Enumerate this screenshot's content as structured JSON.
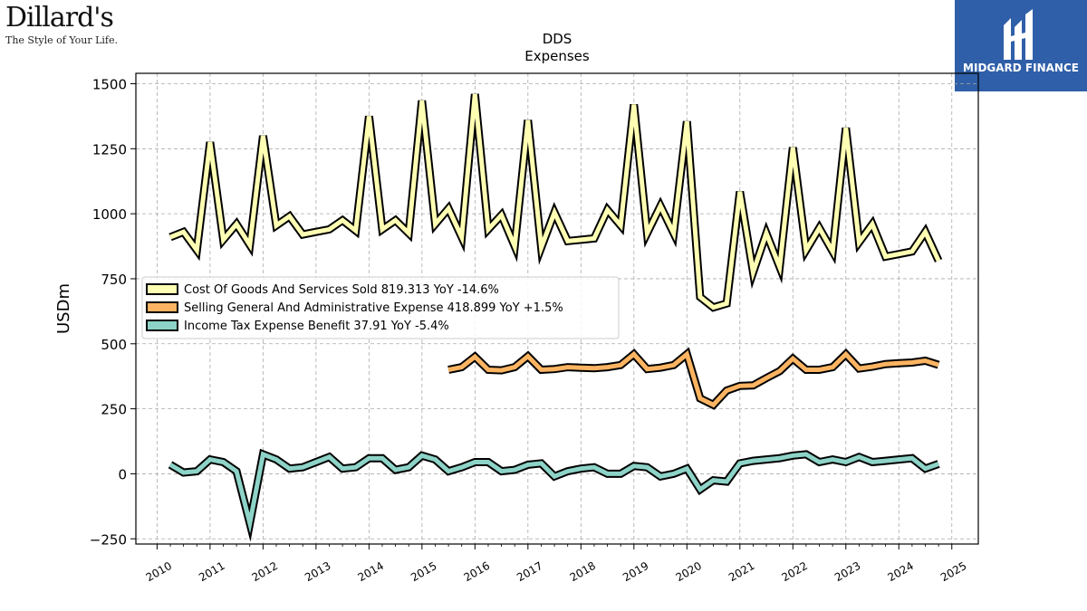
{
  "branding": {
    "left_logo_name": "Dillard's",
    "left_logo_tagline": "The Style of Your Life.",
    "right_logo_name": "MIDGARD FINANCE"
  },
  "colors": {
    "cogs": "#ffffb3",
    "sga": "#fdb462",
    "tax": "#8dd3c7",
    "outline": "#000000",
    "grid": "#aaaaaa",
    "brand_blue": "#2f5fa8"
  },
  "chart_data": {
    "type": "line",
    "title": "DDS",
    "subtitle": "Expenses",
    "ylabel": "USDm",
    "xlabel": "",
    "ylim": [
      -270,
      1540
    ],
    "xlim": [
      2009.6,
      2025.5
    ],
    "yticks": [
      -250,
      0,
      250,
      500,
      750,
      1000,
      1250,
      1500
    ],
    "ytick_labels": [
      "−250",
      "0",
      "250",
      "500",
      "750",
      "1000",
      "1250",
      "1500"
    ],
    "xticks": [
      2010,
      2011,
      2012,
      2013,
      2014,
      2015,
      2016,
      2017,
      2018,
      2019,
      2020,
      2021,
      2022,
      2023,
      2024,
      2025
    ],
    "xtick_labels": [
      "2010",
      "2011",
      "2012",
      "2013",
      "2014",
      "2015",
      "2016",
      "2017",
      "2018",
      "2019",
      "2020",
      "2021",
      "2022",
      "2023",
      "2024",
      "2025"
    ],
    "grid": true,
    "legend_position": "center-left",
    "series": [
      {
        "key": "cogs",
        "name": "Cost Of Goods And Services Sold",
        "legend_label": "Cost Of Goods And Services Sold  819.313 YoY -14.6%",
        "x": [
          2010.25,
          2010.5,
          2010.75,
          2011.0,
          2011.25,
          2011.5,
          2011.75,
          2012.0,
          2012.25,
          2012.5,
          2012.75,
          2013.0,
          2013.25,
          2013.5,
          2013.75,
          2014.0,
          2014.25,
          2014.5,
          2014.75,
          2015.0,
          2015.25,
          2015.5,
          2015.75,
          2016.0,
          2016.25,
          2016.5,
          2016.75,
          2017.0,
          2017.25,
          2017.5,
          2017.75,
          2018.0,
          2018.25,
          2018.5,
          2018.75,
          2019.0,
          2019.25,
          2019.5,
          2019.75,
          2020.0,
          2020.25,
          2020.5,
          2020.75,
          2021.0,
          2021.25,
          2021.5,
          2021.75,
          2022.0,
          2022.25,
          2022.5,
          2022.75,
          2023.0,
          2023.25,
          2023.5,
          2023.75,
          2024.0,
          2024.25,
          2024.5,
          2024.75
        ],
        "values": [
          910,
          930,
          860,
          1275,
          900,
          960,
          880,
          1300,
          955,
          990,
          920,
          930,
          940,
          975,
          935,
          1375,
          940,
          975,
          925,
          1435,
          960,
          1020,
          910,
          1460,
          940,
          995,
          875,
          1360,
          870,
          1005,
          895,
          900,
          905,
          1015,
          955,
          1420,
          925,
          1030,
          925,
          1355,
          680,
          640,
          655,
          1085,
          775,
          925,
          795,
          1255,
          860,
          945,
          855,
          1330,
          890,
          960,
          835,
          845,
          855,
          930,
          819.313
        ]
      },
      {
        "key": "sga",
        "name": "Selling General And Administrative Expense",
        "legend_label": "Selling General And Administrative Expense  418.899 YoY +1.5%",
        "x": [
          2015.5,
          2015.75,
          2016.0,
          2016.25,
          2016.5,
          2016.75,
          2017.0,
          2017.25,
          2017.5,
          2017.75,
          2018.0,
          2018.25,
          2018.5,
          2018.75,
          2019.0,
          2019.25,
          2019.5,
          2019.75,
          2020.0,
          2020.25,
          2020.5,
          2020.75,
          2021.0,
          2021.25,
          2021.5,
          2021.75,
          2022.0,
          2022.25,
          2022.5,
          2022.75,
          2023.0,
          2023.25,
          2023.5,
          2023.75,
          2024.0,
          2024.25,
          2024.5,
          2024.75
        ],
        "values": [
          400,
          410,
          450,
          400,
          398,
          410,
          452,
          400,
          403,
          410,
          408,
          406,
          410,
          418,
          460,
          403,
          408,
          418,
          460,
          290,
          265,
          320,
          338,
          340,
          368,
          395,
          443,
          400,
          400,
          410,
          460,
          405,
          412,
          422,
          425,
          428,
          435,
          418.899
        ]
      },
      {
        "key": "tax",
        "name": "Income Tax Expense Benefit",
        "legend_label": "Income Tax Expense Benefit  37.91 YoY -5.4%",
        "x": [
          2010.25,
          2010.5,
          2010.75,
          2011.0,
          2011.25,
          2011.5,
          2011.75,
          2012.0,
          2012.25,
          2012.5,
          2012.75,
          2013.0,
          2013.25,
          2013.5,
          2013.75,
          2014.0,
          2014.25,
          2014.5,
          2014.75,
          2015.0,
          2015.25,
          2015.5,
          2015.75,
          2016.0,
          2016.25,
          2016.5,
          2016.75,
          2017.0,
          2017.25,
          2017.5,
          2017.75,
          2018.0,
          2018.25,
          2018.5,
          2018.75,
          2019.0,
          2019.25,
          2019.5,
          2019.75,
          2020.0,
          2020.25,
          2020.5,
          2020.75,
          2021.0,
          2021.25,
          2021.5,
          2021.75,
          2022.0,
          2022.25,
          2022.5,
          2022.75,
          2023.0,
          2023.25,
          2023.5,
          2023.75,
          2024.0,
          2024.25,
          2024.5,
          2024.75
        ],
        "values": [
          35,
          5,
          10,
          55,
          45,
          10,
          -190,
          75,
          55,
          20,
          25,
          45,
          65,
          20,
          25,
          60,
          60,
          15,
          25,
          70,
          55,
          10,
          25,
          45,
          45,
          10,
          15,
          35,
          40,
          -10,
          10,
          20,
          25,
          0,
          0,
          30,
          25,
          -10,
          0,
          20,
          -60,
          -25,
          -30,
          40,
          50,
          55,
          60,
          70,
          75,
          45,
          55,
          45,
          65,
          45,
          50,
          55,
          60,
          20,
          37.91
        ]
      }
    ]
  }
}
